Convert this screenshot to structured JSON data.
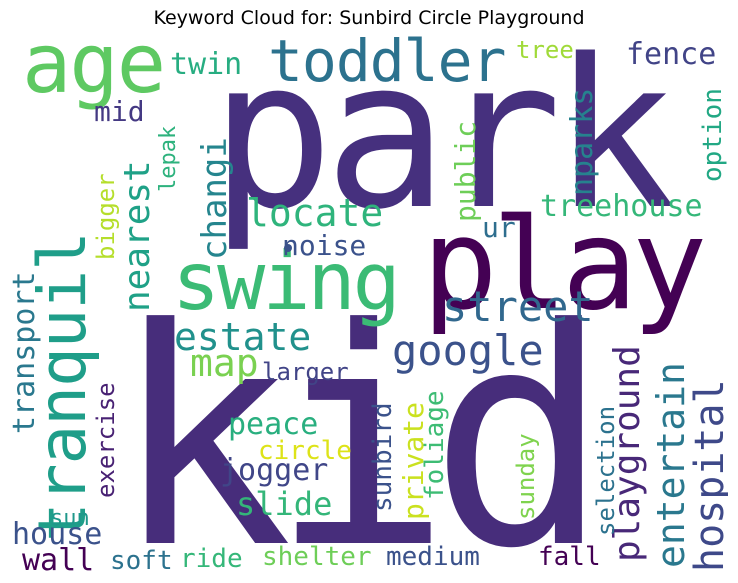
{
  "title": "Keyword Cloud for: Sunbird Circle Playground",
  "words": [
    {
      "text": "kid",
      "color": "#472d7b"
    },
    {
      "text": "park",
      "color": "#46307e"
    },
    {
      "text": "play",
      "color": "#440154"
    },
    {
      "text": "swing",
      "color": "#3bbb75"
    },
    {
      "text": "age",
      "color": "#5ec962"
    },
    {
      "text": "toddler",
      "color": "#2c728e"
    },
    {
      "text": "tranquil",
      "color": "#1f9e89"
    },
    {
      "text": "street",
      "color": "#31688e"
    },
    {
      "text": "google",
      "color": "#3b528b"
    },
    {
      "text": "playground",
      "color": "#482878"
    },
    {
      "text": "hospital",
      "color": "#3e4989"
    },
    {
      "text": "entertain",
      "color": "#2a788e"
    },
    {
      "text": "estate",
      "color": "#21918c"
    },
    {
      "text": "locate",
      "color": "#2fb47c"
    },
    {
      "text": "nearest",
      "color": "#1fa187"
    },
    {
      "text": "changi",
      "color": "#25858e"
    },
    {
      "text": "treehouse",
      "color": "#35b779"
    },
    {
      "text": "map",
      "color": "#7ad151"
    },
    {
      "text": "fence",
      "color": "#414487"
    },
    {
      "text": "twin",
      "color": "#27ad81"
    },
    {
      "text": "tree",
      "color": "#a0da39"
    },
    {
      "text": "nparks",
      "color": "#26828e"
    },
    {
      "text": "public",
      "color": "#6ece58"
    },
    {
      "text": "noise",
      "color": "#3b528b"
    },
    {
      "text": "ur",
      "color": "#2e6e8e"
    },
    {
      "text": "mid",
      "color": "#443983"
    },
    {
      "text": "lepak",
      "color": "#2db27d"
    },
    {
      "text": "bigger",
      "color": "#b5de2b"
    },
    {
      "text": "option",
      "color": "#22a884"
    },
    {
      "text": "transport",
      "color": "#2a788e"
    },
    {
      "text": "exercise",
      "color": "#482173"
    },
    {
      "text": "larger",
      "color": "#414487"
    },
    {
      "text": "peace",
      "color": "#29af7f"
    },
    {
      "text": "circle",
      "color": "#dde318"
    },
    {
      "text": "jogger",
      "color": "#404688"
    },
    {
      "text": "slide",
      "color": "#34b679"
    },
    {
      "text": "private",
      "color": "#cae11f"
    },
    {
      "text": "foliage",
      "color": "#3dbc74"
    },
    {
      "text": "sunbird",
      "color": "#3b528b"
    },
    {
      "text": "sunday",
      "color": "#7fd34e"
    },
    {
      "text": "selection",
      "color": "#2c728e"
    },
    {
      "text": "house",
      "color": "#3b528b"
    },
    {
      "text": "sun",
      "color": "#1f988b"
    },
    {
      "text": "wall",
      "color": "#440154"
    },
    {
      "text": "soft",
      "color": "#2c728e"
    },
    {
      "text": "ride",
      "color": "#35b779"
    },
    {
      "text": "shelter",
      "color": "#6ece58"
    },
    {
      "text": "medium",
      "color": "#3b528b"
    },
    {
      "text": "fall",
      "color": "#440154"
    }
  ]
}
